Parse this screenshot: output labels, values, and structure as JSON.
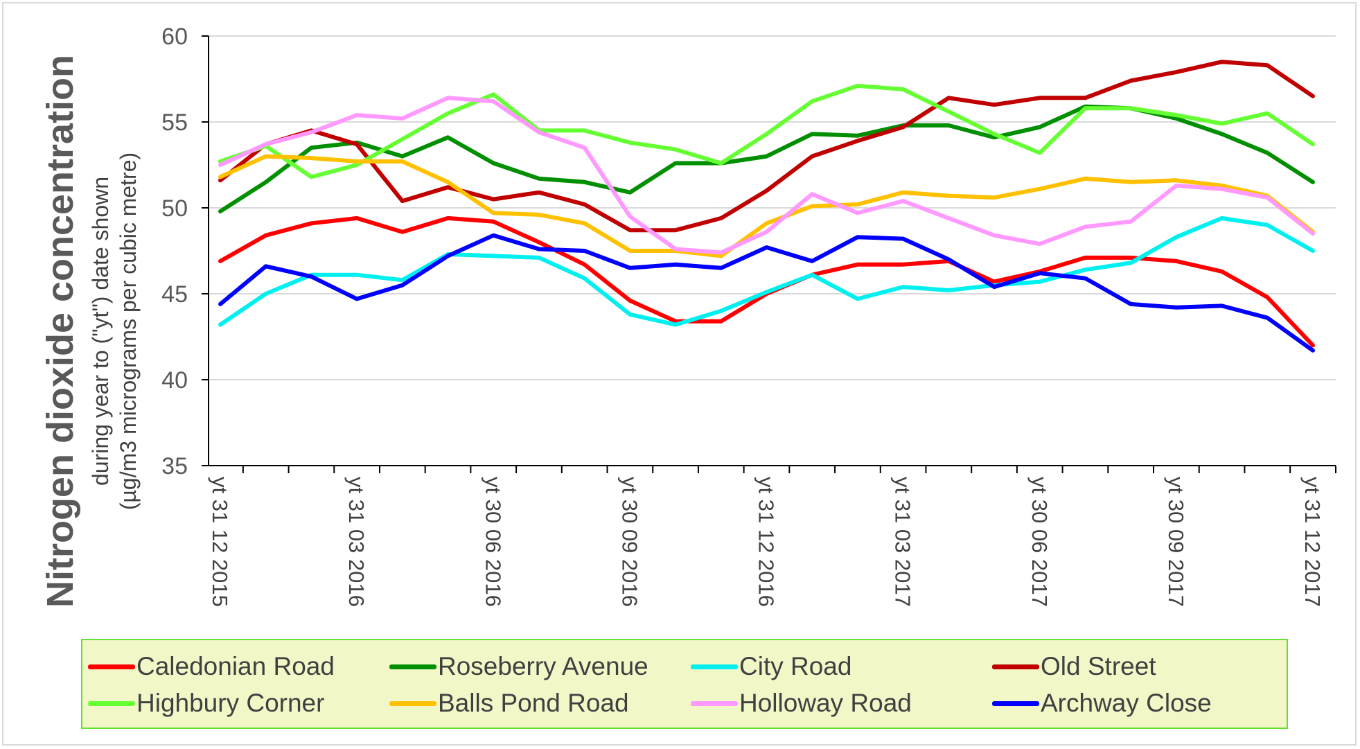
{
  "chart_data": {
    "type": "line",
    "title": "",
    "ylabel_main": "Nitrogen dioxide concentration",
    "ylabel_sub1": "during year to (\"yt\") date shown",
    "ylabel_sub2": "(µg/m3 micrograms per cubic metre)",
    "ylim": [
      35,
      60
    ],
    "yticks": [
      "35",
      "40",
      "45",
      "50",
      "55",
      "60"
    ],
    "grid": "horizontal",
    "legend_position": "bottom",
    "x_tick_labels": [
      "yt 31 12 2015",
      "yt 31 03 2016",
      "yt 30 06 2016",
      "yt 30 09 2016",
      "yt 31 12 2016",
      "yt 31 03 2017",
      "yt 30 06 2017",
      "yt 30 09 2017",
      "yt 31 12 2017"
    ],
    "x": [
      "2015-12",
      "2016-01",
      "2016-02",
      "2016-03",
      "2016-04",
      "2016-05",
      "2016-06",
      "2016-07",
      "2016-08",
      "2016-09",
      "2016-10",
      "2016-11",
      "2016-12",
      "2017-01",
      "2017-02",
      "2017-03",
      "2017-04",
      "2017-05",
      "2017-06",
      "2017-07",
      "2017-08",
      "2017-09",
      "2017-10",
      "2017-11",
      "2017-12"
    ],
    "series": [
      {
        "name": "Caledonian Road",
        "color": "#ff0000",
        "values": [
          46.9,
          48.4,
          49.1,
          49.4,
          48.6,
          49.4,
          49.2,
          48.0,
          46.7,
          44.6,
          43.4,
          43.4,
          45.0,
          46.1,
          46.7,
          46.7,
          46.9,
          45.7,
          46.3,
          47.1,
          47.1,
          46.9,
          46.3,
          44.8,
          42.0
        ]
      },
      {
        "name": "Roseberry Avenue",
        "color": "#008f00",
        "values": [
          49.8,
          51.5,
          53.5,
          53.8,
          53.0,
          54.1,
          52.6,
          51.7,
          51.5,
          50.9,
          52.6,
          52.6,
          53.0,
          54.3,
          54.2,
          54.8,
          54.8,
          54.1,
          54.7,
          55.9,
          55.8,
          55.2,
          54.3,
          53.2,
          51.5
        ]
      },
      {
        "name": "City Road",
        "color": "#00f0f0",
        "values": [
          43.2,
          45.0,
          46.1,
          46.1,
          45.8,
          47.3,
          47.2,
          47.1,
          45.9,
          43.8,
          43.2,
          44.0,
          45.1,
          46.1,
          44.7,
          45.4,
          45.2,
          45.5,
          45.7,
          46.4,
          46.8,
          48.3,
          49.4,
          49.0,
          47.5
        ]
      },
      {
        "name": "Old Street",
        "color": "#c00000",
        "values": [
          51.6,
          53.7,
          54.5,
          53.7,
          50.4,
          51.2,
          50.5,
          50.9,
          50.2,
          48.7,
          48.7,
          49.4,
          51.0,
          53.0,
          53.9,
          54.7,
          56.4,
          56.0,
          56.4,
          56.4,
          57.4,
          57.9,
          58.5,
          58.3,
          56.5
        ]
      },
      {
        "name": "Highbury Corner",
        "color": "#66ff33",
        "values": [
          52.7,
          53.6,
          51.8,
          52.5,
          54.0,
          55.5,
          56.6,
          54.5,
          54.5,
          53.8,
          53.4,
          52.6,
          54.3,
          56.2,
          57.1,
          56.9,
          55.6,
          54.3,
          53.2,
          55.8,
          55.8,
          55.4,
          54.9,
          55.5,
          53.7
        ]
      },
      {
        "name": "Balls Pond Road",
        "color": "#ffc000",
        "values": [
          51.8,
          53.0,
          52.9,
          52.7,
          52.7,
          51.5,
          49.7,
          49.6,
          49.1,
          47.5,
          47.5,
          47.2,
          49.1,
          50.1,
          50.2,
          50.9,
          50.7,
          50.6,
          51.1,
          51.7,
          51.5,
          51.6,
          51.3,
          50.7,
          48.6
        ]
      },
      {
        "name": "Holloway Road",
        "color": "#ff99ff",
        "values": [
          52.5,
          53.7,
          54.4,
          55.4,
          55.2,
          56.4,
          56.2,
          54.4,
          53.5,
          49.5,
          47.6,
          47.4,
          48.6,
          50.8,
          49.7,
          50.4,
          49.4,
          48.4,
          47.9,
          48.9,
          49.2,
          51.3,
          51.1,
          50.6,
          48.5
        ]
      },
      {
        "name": "Archway Close",
        "color": "#0000ff",
        "values": [
          44.4,
          46.6,
          46.0,
          44.7,
          45.5,
          47.2,
          48.4,
          47.6,
          47.5,
          46.5,
          46.7,
          46.5,
          47.7,
          46.9,
          48.3,
          48.2,
          47.0,
          45.4,
          46.2,
          45.9,
          44.4,
          44.2,
          44.3,
          43.6,
          41.7
        ]
      }
    ]
  }
}
